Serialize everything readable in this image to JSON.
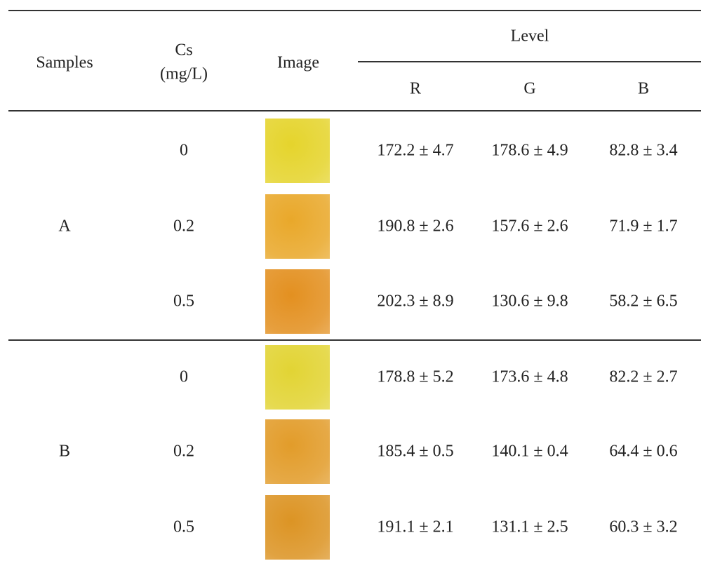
{
  "header": {
    "samples": "Samples",
    "cs": [
      "Cs",
      "(mg/L)"
    ],
    "image": "Image",
    "level": "Level",
    "r": "R",
    "g": "G",
    "b": "B"
  },
  "groups": [
    {
      "sample": "A",
      "rows": [
        {
          "cs": 0,
          "r": "172.2 ± 4.7",
          "g": "178.6 ± 4.9",
          "b": "82.8 ± 3.4"
        },
        {
          "cs": 0.2,
          "r": "190.8 ± 2.6",
          "g": "157.6 ± 2.6",
          "b": "71.9 ± 1.7"
        },
        {
          "cs": 0.5,
          "r": "202.3 ± 8.9",
          "g": "130.6 ± 9.8",
          "b": "58.2 ± 6.5"
        }
      ]
    },
    {
      "sample": "B",
      "rows": [
        {
          "cs": 0,
          "r": "178.8 ± 5.2",
          "g": "173.6 ± 4.8",
          "b": "82.2 ± 2.7"
        },
        {
          "cs": 0.2,
          "r": "185.4 ± 0.5",
          "g": "140.1 ± 0.4",
          "b": "64.4 ± 0.6"
        },
        {
          "cs": 0.5,
          "r": "191.1 ± 2.1",
          "g": "131.1 ± 2.5",
          "b": "60.3 ± 3.2"
        }
      ]
    }
  ]
}
